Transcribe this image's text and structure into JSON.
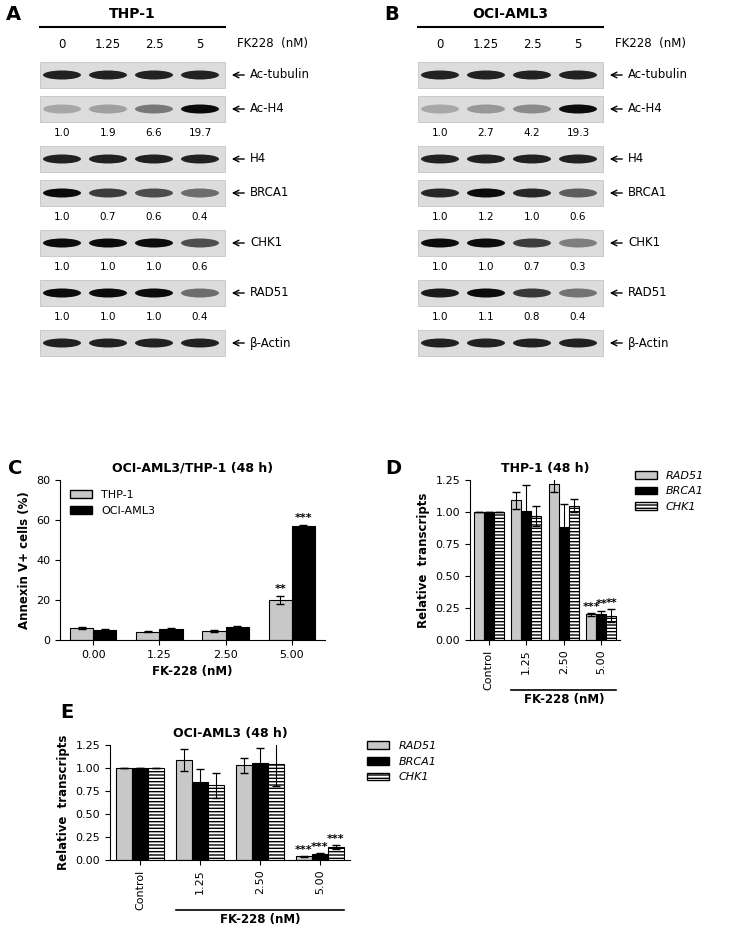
{
  "blots": [
    {
      "panel": "A",
      "cell_line": "THP-1",
      "treatment": "FK228  (nM)",
      "doses": [
        "0",
        "1.25",
        "2.5",
        "5"
      ],
      "rows": [
        {
          "protein": "Ac-tubulin"
        },
        {
          "protein": "Ac-H4",
          "quantification": [
            1.0,
            1.9,
            6.6,
            19.7
          ]
        },
        {
          "protein": "H4"
        },
        {
          "protein": "BRCA1",
          "quantification": [
            1.0,
            0.7,
            0.6,
            0.4
          ]
        },
        {
          "protein": "CHK1",
          "quantification": [
            1.0,
            1.0,
            1.0,
            0.6
          ]
        },
        {
          "protein": "RAD51",
          "quantification": [
            1.0,
            1.0,
            1.0,
            0.4
          ]
        },
        {
          "protein": "β-Actin"
        }
      ]
    },
    {
      "panel": "B",
      "cell_line": "OCI-AML3",
      "treatment": "FK228  (nM)",
      "doses": [
        "0",
        "1.25",
        "2.5",
        "5"
      ],
      "rows": [
        {
          "protein": "Ac-tubulin"
        },
        {
          "protein": "Ac-H4",
          "quantification": [
            1.0,
            2.7,
            4.2,
            19.3
          ]
        },
        {
          "protein": "H4"
        },
        {
          "protein": "BRCA1",
          "quantification": [
            1.0,
            1.2,
            1.0,
            0.6
          ]
        },
        {
          "protein": "CHK1",
          "quantification": [
            1.0,
            1.0,
            0.7,
            0.3
          ]
        },
        {
          "protein": "RAD51",
          "quantification": [
            1.0,
            1.1,
            0.8,
            0.4
          ]
        },
        {
          "protein": "β-Actin"
        }
      ]
    }
  ],
  "chart_data": [
    {
      "panel": "C",
      "type": "bar",
      "title": "OCI-AML3/THP-1 (48 h)",
      "x_label": "FK-228 (nM)",
      "y_label": "Annexin V+ cells (%)",
      "categories": [
        "0.00",
        "1.25",
        "2.50",
        "5.00"
      ],
      "series": [
        {
          "name": "THP-1",
          "color": "#c8c8c8",
          "values": [
            6.0,
            4.2,
            4.5,
            20.0
          ],
          "errors": [
            0.5,
            0.3,
            0.3,
            2.0
          ],
          "significance": [
            null,
            null,
            null,
            "**"
          ]
        },
        {
          "name": "OCI-AML3",
          "color": "#000000",
          "values": [
            5.0,
            5.5,
            6.5,
            57.0
          ],
          "errors": [
            0.3,
            0.4,
            0.5,
            0.5
          ],
          "significance": [
            null,
            null,
            null,
            "***"
          ]
        }
      ],
      "ylim": [
        0,
        80
      ],
      "yticks": [
        0,
        20,
        40,
        60,
        80
      ],
      "legend": "upper left"
    },
    {
      "panel": "D",
      "type": "bar",
      "title": "THP-1 (48 h)",
      "x_label": "FK-228 (nM)",
      "y_label": "Relative  transcripts",
      "categories": [
        "Control",
        "1.25",
        "2.50",
        "5.00"
      ],
      "series": [
        {
          "name": "RAD51",
          "color": "#c8c8c8",
          "values": [
            1.0,
            1.09,
            1.22,
            0.2
          ],
          "errors": [
            0,
            0.07,
            0.06,
            0.01
          ],
          "significance": [
            null,
            null,
            null,
            "***"
          ]
        },
        {
          "name": "BRCA1",
          "color": "#000000",
          "values": [
            1.0,
            1.01,
            0.88,
            0.2
          ],
          "errors": [
            0,
            0.2,
            0.18,
            0.03
          ],
          "significance": [
            null,
            null,
            null,
            "**"
          ]
        },
        {
          "name": "CHK1",
          "color": "#ffffff",
          "values": [
            1.0,
            0.97,
            1.05,
            0.19
          ],
          "errors": [
            0,
            0.08,
            0.05,
            0.05
          ],
          "significance": [
            null,
            null,
            null,
            "**"
          ]
        }
      ],
      "ylim": [
        0,
        1.25
      ],
      "yticks": [
        {
          "value": 0,
          "label": "0.00"
        },
        {
          "value": 0.25,
          "label": "0.25"
        },
        {
          "value": 0.5,
          "label": "0.50"
        },
        {
          "value": 0.75,
          "label": "0.75"
        },
        {
          "value": 1.0,
          "label": "1.00"
        },
        {
          "value": 1.25,
          "label": "1.25"
        }
      ],
      "legend": "right"
    },
    {
      "panel": "E",
      "type": "bar",
      "title": "OCI-AML3 (48 h)",
      "x_label": "FK-228 (nM)",
      "y_label": "Relative  transcripts",
      "categories": [
        "Control",
        "1.25",
        "2.50",
        "5.00"
      ],
      "series": [
        {
          "name": "RAD51",
          "color": "#c8c8c8",
          "values": [
            1.0,
            1.09,
            1.03,
            0.04
          ],
          "errors": [
            0,
            0.12,
            0.08,
            0.005
          ],
          "significance": [
            null,
            null,
            null,
            "***"
          ]
        },
        {
          "name": "BRCA1",
          "color": "#000000",
          "values": [
            1.0,
            0.85,
            1.05,
            0.07
          ],
          "errors": [
            0,
            0.14,
            0.17,
            0.005
          ],
          "significance": [
            null,
            null,
            null,
            "***"
          ]
        },
        {
          "name": "CHK1",
          "color": "#ffffff",
          "values": [
            1.0,
            0.81,
            1.04,
            0.14
          ],
          "errors": [
            0,
            0.14,
            0.24,
            0.02
          ],
          "significance": [
            null,
            null,
            null,
            "***"
          ]
        }
      ],
      "ylim": [
        0,
        1.25
      ],
      "yticks": [
        {
          "value": 0,
          "label": "0.00"
        },
        {
          "value": 0.25,
          "label": "0.25"
        },
        {
          "value": 0.5,
          "label": "0.50"
        },
        {
          "value": 0.75,
          "label": "0.75"
        },
        {
          "value": 1.0,
          "label": "1.00"
        },
        {
          "value": 1.25,
          "label": "1.25"
        }
      ],
      "legend": "right"
    }
  ]
}
